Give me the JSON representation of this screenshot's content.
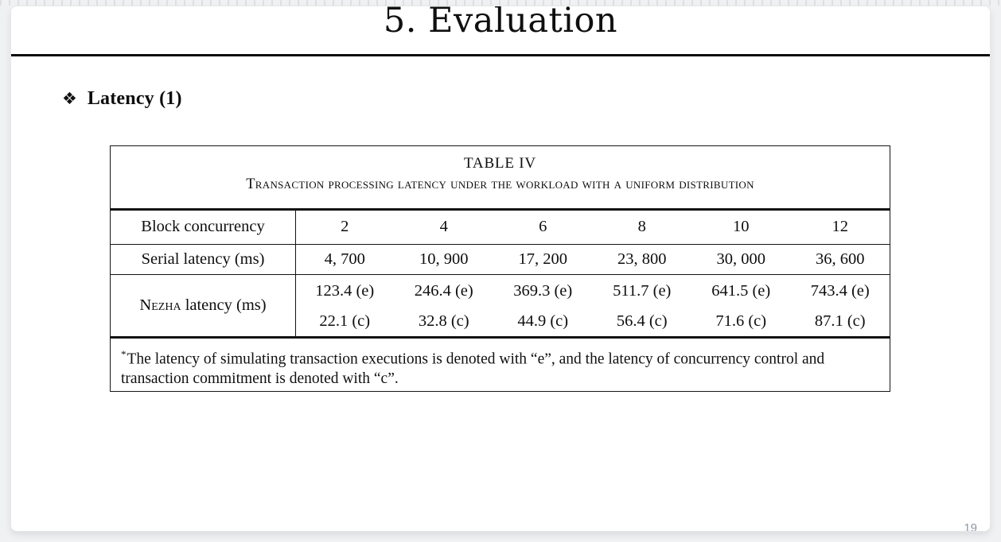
{
  "slide": {
    "title": "5. Evaluation",
    "bullet_icon": "❖",
    "bullet": "Latency (1)",
    "page_number": "19"
  },
  "table": {
    "caption_label": "TABLE IV",
    "caption_text": "Transaction processing latency under the workload with a uniform distribution",
    "header": {
      "label": "Block concurrency",
      "values": [
        "2",
        "4",
        "6",
        "8",
        "10",
        "12"
      ]
    },
    "serial": {
      "label": "Serial latency (ms)",
      "values": [
        "4, 700",
        "10, 900",
        "17, 200",
        "23, 800",
        "30, 000",
        "36, 600"
      ]
    },
    "nezha": {
      "brand": "Nezha",
      "rest": " latency (ms)",
      "e": [
        "123.4 (e)",
        "246.4 (e)",
        "369.3 (e)",
        "511.7 (e)",
        "641.5 (e)",
        "743.4 (e)"
      ],
      "c": [
        "22.1 (c)",
        "32.8 (c)",
        "44.9 (c)",
        "56.4 (c)",
        "71.6 (c)",
        "87.1 (c)"
      ]
    },
    "footnote_marker": "*",
    "footnote": "The latency of simulating transaction executions is denoted with “e”, and the latency of concurrency control and transaction commitment is denoted with “c”."
  },
  "chart_data": {
    "type": "table",
    "title": "TABLE IV — Transaction processing latency under the workload with a uniform distribution",
    "categories": [
      2,
      4,
      6,
      8,
      10,
      12
    ],
    "x_label": "Block concurrency",
    "series": [
      {
        "name": "Serial latency (ms)",
        "values": [
          4700,
          10900,
          17200,
          23800,
          30000,
          36600
        ]
      },
      {
        "name": "Nezha latency (ms) - simulating execution (e)",
        "values": [
          123.4,
          246.4,
          369.3,
          511.7,
          641.5,
          743.4
        ]
      },
      {
        "name": "Nezha latency (ms) - concurrency control and commitment (c)",
        "values": [
          22.1,
          32.8,
          44.9,
          56.4,
          71.6,
          87.1
        ]
      }
    ]
  },
  "colors": {
    "background": "#f0f1f3",
    "slide": "#ffffff",
    "text": "#0e0e0e",
    "page_number": "#9097a0"
  }
}
